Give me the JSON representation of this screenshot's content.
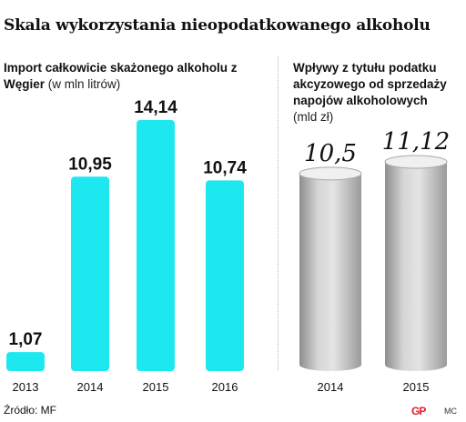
{
  "title": "Skala wykorzystania nieopodatkowanego alkoholu",
  "left_panel": {
    "subtitle_bold": "Import całkowicie skażonego alkoholu z Węgier",
    "subtitle_unit": "(w mln litrów)"
  },
  "right_panel": {
    "subtitle_bold": "Wpływy z tytułu podatku akcyzowego od sprzedaży napojów alkoholowych",
    "subtitle_unit": "(mld zł)"
  },
  "source": "Źródło: MF",
  "logo_text": "GP",
  "author_initials": "MC",
  "colors": {
    "bar_left": "#1de8f0",
    "bar_right": "#bdbdbd",
    "divider": "#b5b5b5",
    "logo": "#e2202b"
  },
  "chart_data": [
    {
      "type": "bar",
      "categories": [
        "2013",
        "2014",
        "2015",
        "2016"
      ],
      "values": [
        1.07,
        10.95,
        14.14,
        10.74
      ],
      "labels": [
        "1,07",
        "10,95",
        "14,14",
        "10,74"
      ],
      "title": "Import całkowicie skażonego alkoholu z Węgier",
      "ylabel": "(w mln litrów)",
      "ylim": [
        0,
        14.14
      ],
      "grid": false,
      "legend": "none"
    },
    {
      "type": "bar",
      "style": "cylinder",
      "categories": [
        "2014",
        "2015"
      ],
      "values": [
        10.5,
        11.12
      ],
      "labels": [
        "10,5",
        "11,12"
      ],
      "title": "Wpływy z tytułu podatku akcyzowego od sprzedaży napojów alkoholowych",
      "ylabel": "(mld zł)",
      "ylim": [
        0,
        11.12
      ],
      "grid": false,
      "legend": "none"
    }
  ]
}
